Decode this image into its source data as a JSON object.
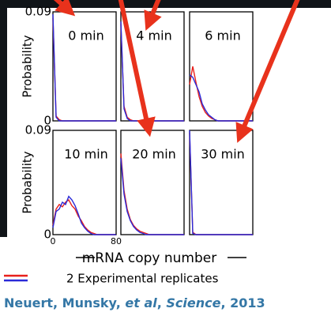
{
  "chart_data": [
    {
      "type": "line",
      "title": "0 min",
      "ylabel": "Probability",
      "x": [
        0,
        4,
        8,
        12,
        16,
        20,
        24,
        28,
        32,
        36,
        40,
        44,
        48,
        52,
        56,
        60,
        64,
        68,
        72,
        76,
        80
      ],
      "series": [
        {
          "color": "#e8201c",
          "values": [
            0.085,
            0.004,
            0.001,
            0,
            0,
            0,
            0,
            0,
            0,
            0,
            0,
            0,
            0,
            0,
            0,
            0,
            0,
            0,
            0,
            0,
            0
          ]
        },
        {
          "color": "#2a2ad8",
          "values": [
            0.088,
            0.003,
            0,
            0,
            0,
            0,
            0,
            0,
            0,
            0,
            0,
            0,
            0,
            0,
            0,
            0,
            0,
            0,
            0,
            0,
            0
          ]
        }
      ],
      "xlim": [
        0,
        80
      ],
      "ylim": [
        0,
        0.09
      ],
      "yticks": [
        0,
        0.09
      ]
    },
    {
      "type": "line",
      "title": "4 min",
      "x": [
        0,
        4,
        8,
        12,
        16,
        20,
        24,
        28,
        32,
        36,
        40,
        44,
        48,
        52,
        56,
        60,
        64,
        68,
        72,
        76,
        80
      ],
      "series": [
        {
          "color": "#e8201c",
          "values": [
            0.08,
            0.012,
            0.003,
            0.001,
            0,
            0,
            0,
            0,
            0,
            0,
            0,
            0,
            0,
            0,
            0,
            0,
            0,
            0,
            0,
            0,
            0
          ]
        },
        {
          "color": "#2a2ad8",
          "values": [
            0.082,
            0.01,
            0.002,
            0,
            0,
            0,
            0,
            0,
            0,
            0,
            0,
            0,
            0,
            0,
            0,
            0,
            0,
            0,
            0,
            0,
            0
          ]
        }
      ],
      "xlim": [
        0,
        80
      ],
      "ylim": [
        0,
        0.09
      ]
    },
    {
      "type": "line",
      "title": "6 min",
      "x": [
        0,
        4,
        8,
        12,
        16,
        20,
        24,
        28,
        32,
        36,
        40,
        44,
        48,
        52,
        56,
        60,
        64,
        68,
        72,
        76,
        80
      ],
      "series": [
        {
          "color": "#e8201c",
          "values": [
            0.03,
            0.045,
            0.032,
            0.02,
            0.012,
            0.007,
            0.004,
            0.002,
            0.001,
            0,
            0,
            0,
            0,
            0,
            0,
            0,
            0,
            0,
            0,
            0,
            0
          ]
        },
        {
          "color": "#2a2ad8",
          "values": [
            0.038,
            0.036,
            0.03,
            0.024,
            0.014,
            0.009,
            0.005,
            0.003,
            0.001,
            0,
            0,
            0,
            0,
            0,
            0,
            0,
            0,
            0,
            0,
            0,
            0
          ]
        }
      ],
      "xlim": [
        0,
        80
      ],
      "ylim": [
        0,
        0.09
      ]
    },
    {
      "type": "line",
      "title": "10 min",
      "ylabel": "Probability",
      "x": [
        0,
        4,
        8,
        12,
        16,
        20,
        24,
        28,
        32,
        36,
        40,
        44,
        48,
        52,
        56,
        60,
        64,
        68,
        72,
        76,
        80
      ],
      "series": [
        {
          "color": "#e8201c",
          "values": [
            0.008,
            0.022,
            0.026,
            0.024,
            0.028,
            0.03,
            0.025,
            0.022,
            0.016,
            0.012,
            0.007,
            0.004,
            0.002,
            0.001,
            0,
            0,
            0,
            0,
            0,
            0,
            0
          ]
        },
        {
          "color": "#2a2ad8",
          "values": [
            0.006,
            0.02,
            0.022,
            0.028,
            0.026,
            0.033,
            0.03,
            0.025,
            0.018,
            0.01,
            0.006,
            0.003,
            0.001,
            0,
            0,
            0,
            0,
            0,
            0,
            0,
            0
          ]
        }
      ],
      "xlim": [
        0,
        80
      ],
      "ylim": [
        0,
        0.09
      ],
      "yticks": [
        0,
        0.09
      ],
      "xticks": [
        0,
        80
      ]
    },
    {
      "type": "line",
      "title": "20 min",
      "x": [
        0,
        4,
        8,
        12,
        16,
        20,
        24,
        28,
        32,
        36,
        40,
        44,
        48,
        52,
        56,
        60,
        64,
        68,
        72,
        76,
        80
      ],
      "series": [
        {
          "color": "#e8201c",
          "values": [
            0.07,
            0.038,
            0.022,
            0.013,
            0.008,
            0.005,
            0.003,
            0.002,
            0.001,
            0,
            0,
            0,
            0,
            0,
            0,
            0,
            0,
            0,
            0,
            0,
            0
          ]
        },
        {
          "color": "#2a2ad8",
          "values": [
            0.066,
            0.035,
            0.02,
            0.012,
            0.007,
            0.004,
            0.002,
            0.001,
            0,
            0,
            0,
            0,
            0,
            0,
            0,
            0,
            0,
            0,
            0,
            0,
            0
          ]
        }
      ],
      "xlim": [
        0,
        80
      ],
      "ylim": [
        0,
        0.09
      ]
    },
    {
      "type": "line",
      "title": "30 min",
      "x": [
        0,
        4,
        8,
        12,
        16,
        20,
        24,
        28,
        32,
        36,
        40,
        44,
        48,
        52,
        56,
        60,
        64,
        68,
        72,
        76,
        80
      ],
      "series": [
        {
          "color": "#e8201c",
          "values": [
            0.088,
            0.002,
            0,
            0,
            0,
            0,
            0,
            0,
            0,
            0,
            0,
            0,
            0,
            0,
            0,
            0,
            0,
            0,
            0,
            0,
            0
          ]
        },
        {
          "color": "#2a2ad8",
          "values": [
            0.09,
            0.001,
            0,
            0,
            0,
            0,
            0,
            0,
            0,
            0,
            0,
            0,
            0,
            0,
            0,
            0,
            0,
            0,
            0,
            0,
            0
          ]
        }
      ],
      "xlim": [
        0,
        80
      ],
      "ylim": [
        0,
        0.09
      ]
    }
  ],
  "figure": {
    "xlabel": "mRNA copy number",
    "legend": "2 Experimental replicates",
    "citation": [
      "Neuert, Munsky, ",
      "et al",
      ", ",
      "Science",
      ", 2013"
    ]
  }
}
